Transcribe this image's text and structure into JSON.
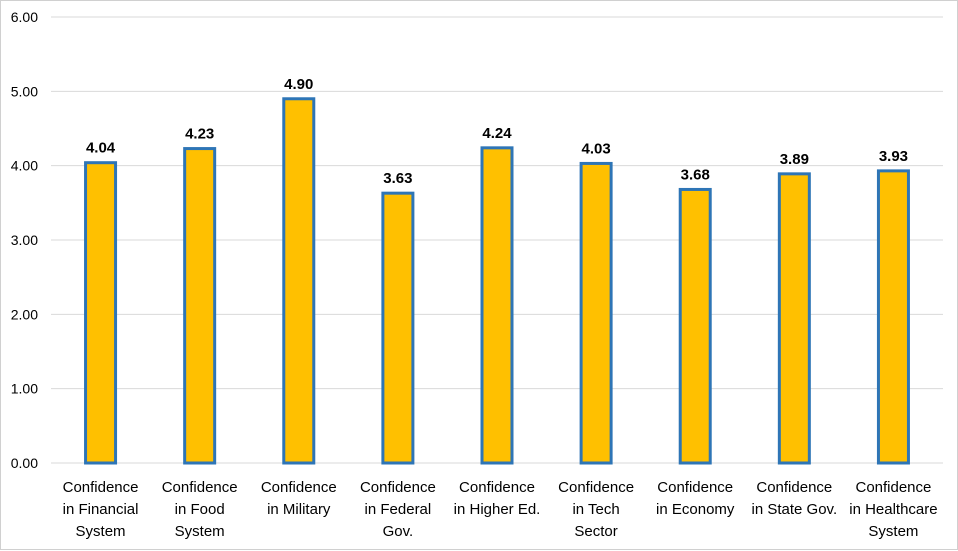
{
  "chart_data": {
    "type": "bar",
    "categories": [
      [
        "Confidence",
        "in Financial",
        "System"
      ],
      [
        "Confidence",
        "in Food",
        "System"
      ],
      [
        "Confidence",
        "in Military"
      ],
      [
        "Confidence",
        "in Federal",
        "Gov."
      ],
      [
        "Confidence",
        "in Higher Ed."
      ],
      [
        "Confidence",
        "in Tech",
        "Sector"
      ],
      [
        "Confidence",
        "in Economy"
      ],
      [
        "Confidence",
        "in State Gov."
      ],
      [
        "Confidence",
        "in Healthcare",
        "System"
      ]
    ],
    "values": [
      4.04,
      4.23,
      4.9,
      3.63,
      4.24,
      4.03,
      3.68,
      3.89,
      3.93
    ],
    "data_labels": [
      "4.04",
      "4.23",
      "4.90",
      "3.63",
      "4.24",
      "4.03",
      "3.68",
      "3.89",
      "3.93"
    ],
    "y_ticks": [
      "0.00",
      "1.00",
      "2.00",
      "3.00",
      "4.00",
      "5.00",
      "6.00"
    ],
    "ylim": [
      0,
      6
    ],
    "grid": true,
    "legend": "none",
    "colors": {
      "bar_fill": "#FFC000",
      "bar_border": "#2E75B6",
      "grid": "#D9D9D9"
    }
  }
}
